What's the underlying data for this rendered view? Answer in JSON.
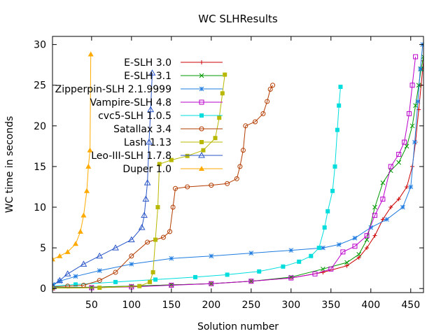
{
  "chart_data": {
    "type": "line",
    "title": "WC SLHResults",
    "xlabel": "Solution number",
    "ylabel": "WC time in seconds",
    "xlim": [
      1,
      466
    ],
    "ylim": [
      -0.5,
      31
    ],
    "xticks": [
      50,
      100,
      150,
      200,
      250,
      300,
      350,
      400,
      450
    ],
    "yticks": [
      0,
      5,
      10,
      15,
      20,
      25,
      30
    ],
    "grid": false,
    "legend_position": "top-left",
    "series": [
      {
        "name": "E-SLH 3.0",
        "color": "#cc0000",
        "marker": "plus",
        "points": [
          [
            1,
            0.1
          ],
          [
            50,
            0.15
          ],
          [
            100,
            0.3
          ],
          [
            150,
            0.45
          ],
          [
            200,
            0.6
          ],
          [
            250,
            0.9
          ],
          [
            300,
            1.3
          ],
          [
            340,
            2.0
          ],
          [
            370,
            2.8
          ],
          [
            385,
            3.8
          ],
          [
            395,
            5.0
          ],
          [
            405,
            6.5
          ],
          [
            415,
            8.5
          ],
          [
            425,
            10.0
          ],
          [
            435,
            11.0
          ],
          [
            445,
            12.5
          ],
          [
            452,
            15.0
          ],
          [
            456,
            18.0
          ],
          [
            460,
            22.0
          ],
          [
            463,
            25.0
          ],
          [
            466,
            28.0
          ]
        ]
      },
      {
        "name": "E-SLH 3.1",
        "color": "#009900",
        "marker": "x",
        "points": [
          [
            1,
            0.1
          ],
          [
            50,
            0.15
          ],
          [
            100,
            0.3
          ],
          [
            150,
            0.45
          ],
          [
            200,
            0.6
          ],
          [
            250,
            0.9
          ],
          [
            300,
            1.4
          ],
          [
            340,
            2.4
          ],
          [
            370,
            3.2
          ],
          [
            385,
            4.2
          ],
          [
            395,
            6.0
          ],
          [
            405,
            10.0
          ],
          [
            415,
            13.0
          ],
          [
            425,
            14.5
          ],
          [
            435,
            15.5
          ],
          [
            445,
            17.5
          ],
          [
            452,
            20.0
          ],
          [
            456,
            22.5
          ],
          [
            460,
            25.0
          ],
          [
            463,
            27.0
          ],
          [
            466,
            28.5
          ]
        ]
      },
      {
        "name": "Zipperpin-SLH 2.1.9999",
        "color": "#1e7be0",
        "marker": "star",
        "points": [
          [
            1,
            0.5
          ],
          [
            10,
            0.9
          ],
          [
            30,
            1.5
          ],
          [
            60,
            2.2
          ],
          [
            100,
            3.0
          ],
          [
            150,
            3.7
          ],
          [
            200,
            4.0
          ],
          [
            250,
            4.35
          ],
          [
            300,
            4.7
          ],
          [
            340,
            5.0
          ],
          [
            360,
            5.4
          ],
          [
            380,
            6.2
          ],
          [
            400,
            7.5
          ],
          [
            420,
            8.5
          ],
          [
            440,
            10.0
          ],
          [
            450,
            12.5
          ],
          [
            455,
            18.0
          ],
          [
            459,
            23.0
          ],
          [
            462,
            27.0
          ],
          [
            465,
            30.0
          ]
        ]
      },
      {
        "name": "Vampire-SLH 4.8",
        "color": "#bb00cc",
        "marker": "square-open",
        "points": [
          [
            1,
            0.05
          ],
          [
            50,
            0.1
          ],
          [
            100,
            0.2
          ],
          [
            150,
            0.4
          ],
          [
            200,
            0.6
          ],
          [
            250,
            0.9
          ],
          [
            300,
            1.3
          ],
          [
            330,
            1.8
          ],
          [
            350,
            2.4
          ],
          [
            365,
            4.5
          ],
          [
            380,
            5.2
          ],
          [
            395,
            6.5
          ],
          [
            405,
            9.0
          ],
          [
            415,
            11.0
          ],
          [
            425,
            15.0
          ],
          [
            435,
            16.5
          ],
          [
            442,
            18.0
          ],
          [
            448,
            21.5
          ],
          [
            452,
            25.0
          ],
          [
            456,
            28.5
          ]
        ]
      },
      {
        "name": "cvc5-SLH 1.0.5",
        "color": "#00dddd",
        "marker": "square-filled",
        "points": [
          [
            1,
            0.3
          ],
          [
            30,
            0.5
          ],
          [
            80,
            0.8
          ],
          [
            130,
            1.1
          ],
          [
            180,
            1.4
          ],
          [
            220,
            1.7
          ],
          [
            260,
            2.1
          ],
          [
            290,
            2.7
          ],
          [
            310,
            3.3
          ],
          [
            325,
            4.0
          ],
          [
            335,
            5.0
          ],
          [
            342,
            7.5
          ],
          [
            346,
            9.5
          ],
          [
            352,
            12.0
          ],
          [
            355,
            15.0
          ],
          [
            358,
            19.5
          ],
          [
            360,
            22.5
          ],
          [
            362,
            24.8
          ]
        ]
      },
      {
        "name": "Satallax 3.4",
        "color": "#b33c00",
        "marker": "circle-open",
        "points": [
          [
            1,
            0.2
          ],
          [
            20,
            0.3
          ],
          [
            40,
            0.4
          ],
          [
            60,
            1.0
          ],
          [
            80,
            2.0
          ],
          [
            100,
            4.0
          ],
          [
            120,
            5.7
          ],
          [
            140,
            6.3
          ],
          [
            148,
            7.0
          ],
          [
            152,
            10.0
          ],
          [
            155,
            12.3
          ],
          [
            170,
            12.5
          ],
          [
            200,
            12.7
          ],
          [
            220,
            12.9
          ],
          [
            232,
            13.5
          ],
          [
            236,
            15.0
          ],
          [
            240,
            17.0
          ],
          [
            243,
            20.0
          ],
          [
            255,
            20.5
          ],
          [
            265,
            21.5
          ],
          [
            270,
            23.0
          ],
          [
            274,
            24.5
          ],
          [
            277,
            25.0
          ]
        ]
      },
      {
        "name": "Lash 1.13",
        "color": "#b8b800",
        "marker": "square-filled",
        "points": [
          [
            1,
            0.05
          ],
          [
            60,
            0.1
          ],
          [
            110,
            0.3
          ],
          [
            123,
            0.8
          ],
          [
            127,
            2.0
          ],
          [
            130,
            6.0
          ],
          [
            133,
            10.0
          ],
          [
            135,
            15.3
          ],
          [
            150,
            15.8
          ],
          [
            170,
            16.3
          ],
          [
            190,
            17.0
          ],
          [
            205,
            18.5
          ],
          [
            210,
            21.0
          ],
          [
            214,
            24.0
          ],
          [
            217,
            26.3
          ]
        ]
      },
      {
        "name": "Leo-III-SLH 1.7.8",
        "color": "#2a56c8",
        "marker": "triangle-open",
        "points": [
          [
            1,
            0.3
          ],
          [
            10,
            1.0
          ],
          [
            20,
            1.8
          ],
          [
            40,
            3.0
          ],
          [
            60,
            4.0
          ],
          [
            80,
            5.0
          ],
          [
            100,
            6.0
          ],
          [
            113,
            7.5
          ],
          [
            116,
            9.0
          ],
          [
            118,
            11.0
          ],
          [
            120,
            13.0
          ],
          [
            122,
            18.0
          ],
          [
            124,
            22.0
          ],
          [
            126,
            26.5
          ]
        ]
      },
      {
        "name": "Duper 1.0",
        "color": "#ffaa00",
        "marker": "triangle-filled",
        "points": [
          [
            1,
            3.6
          ],
          [
            10,
            4.0
          ],
          [
            20,
            4.5
          ],
          [
            30,
            5.5
          ],
          [
            36,
            7.0
          ],
          [
            40,
            9.0
          ],
          [
            44,
            12.0
          ],
          [
            46,
            15.0
          ],
          [
            48,
            17.0
          ],
          [
            49,
            28.8
          ]
        ]
      }
    ]
  }
}
